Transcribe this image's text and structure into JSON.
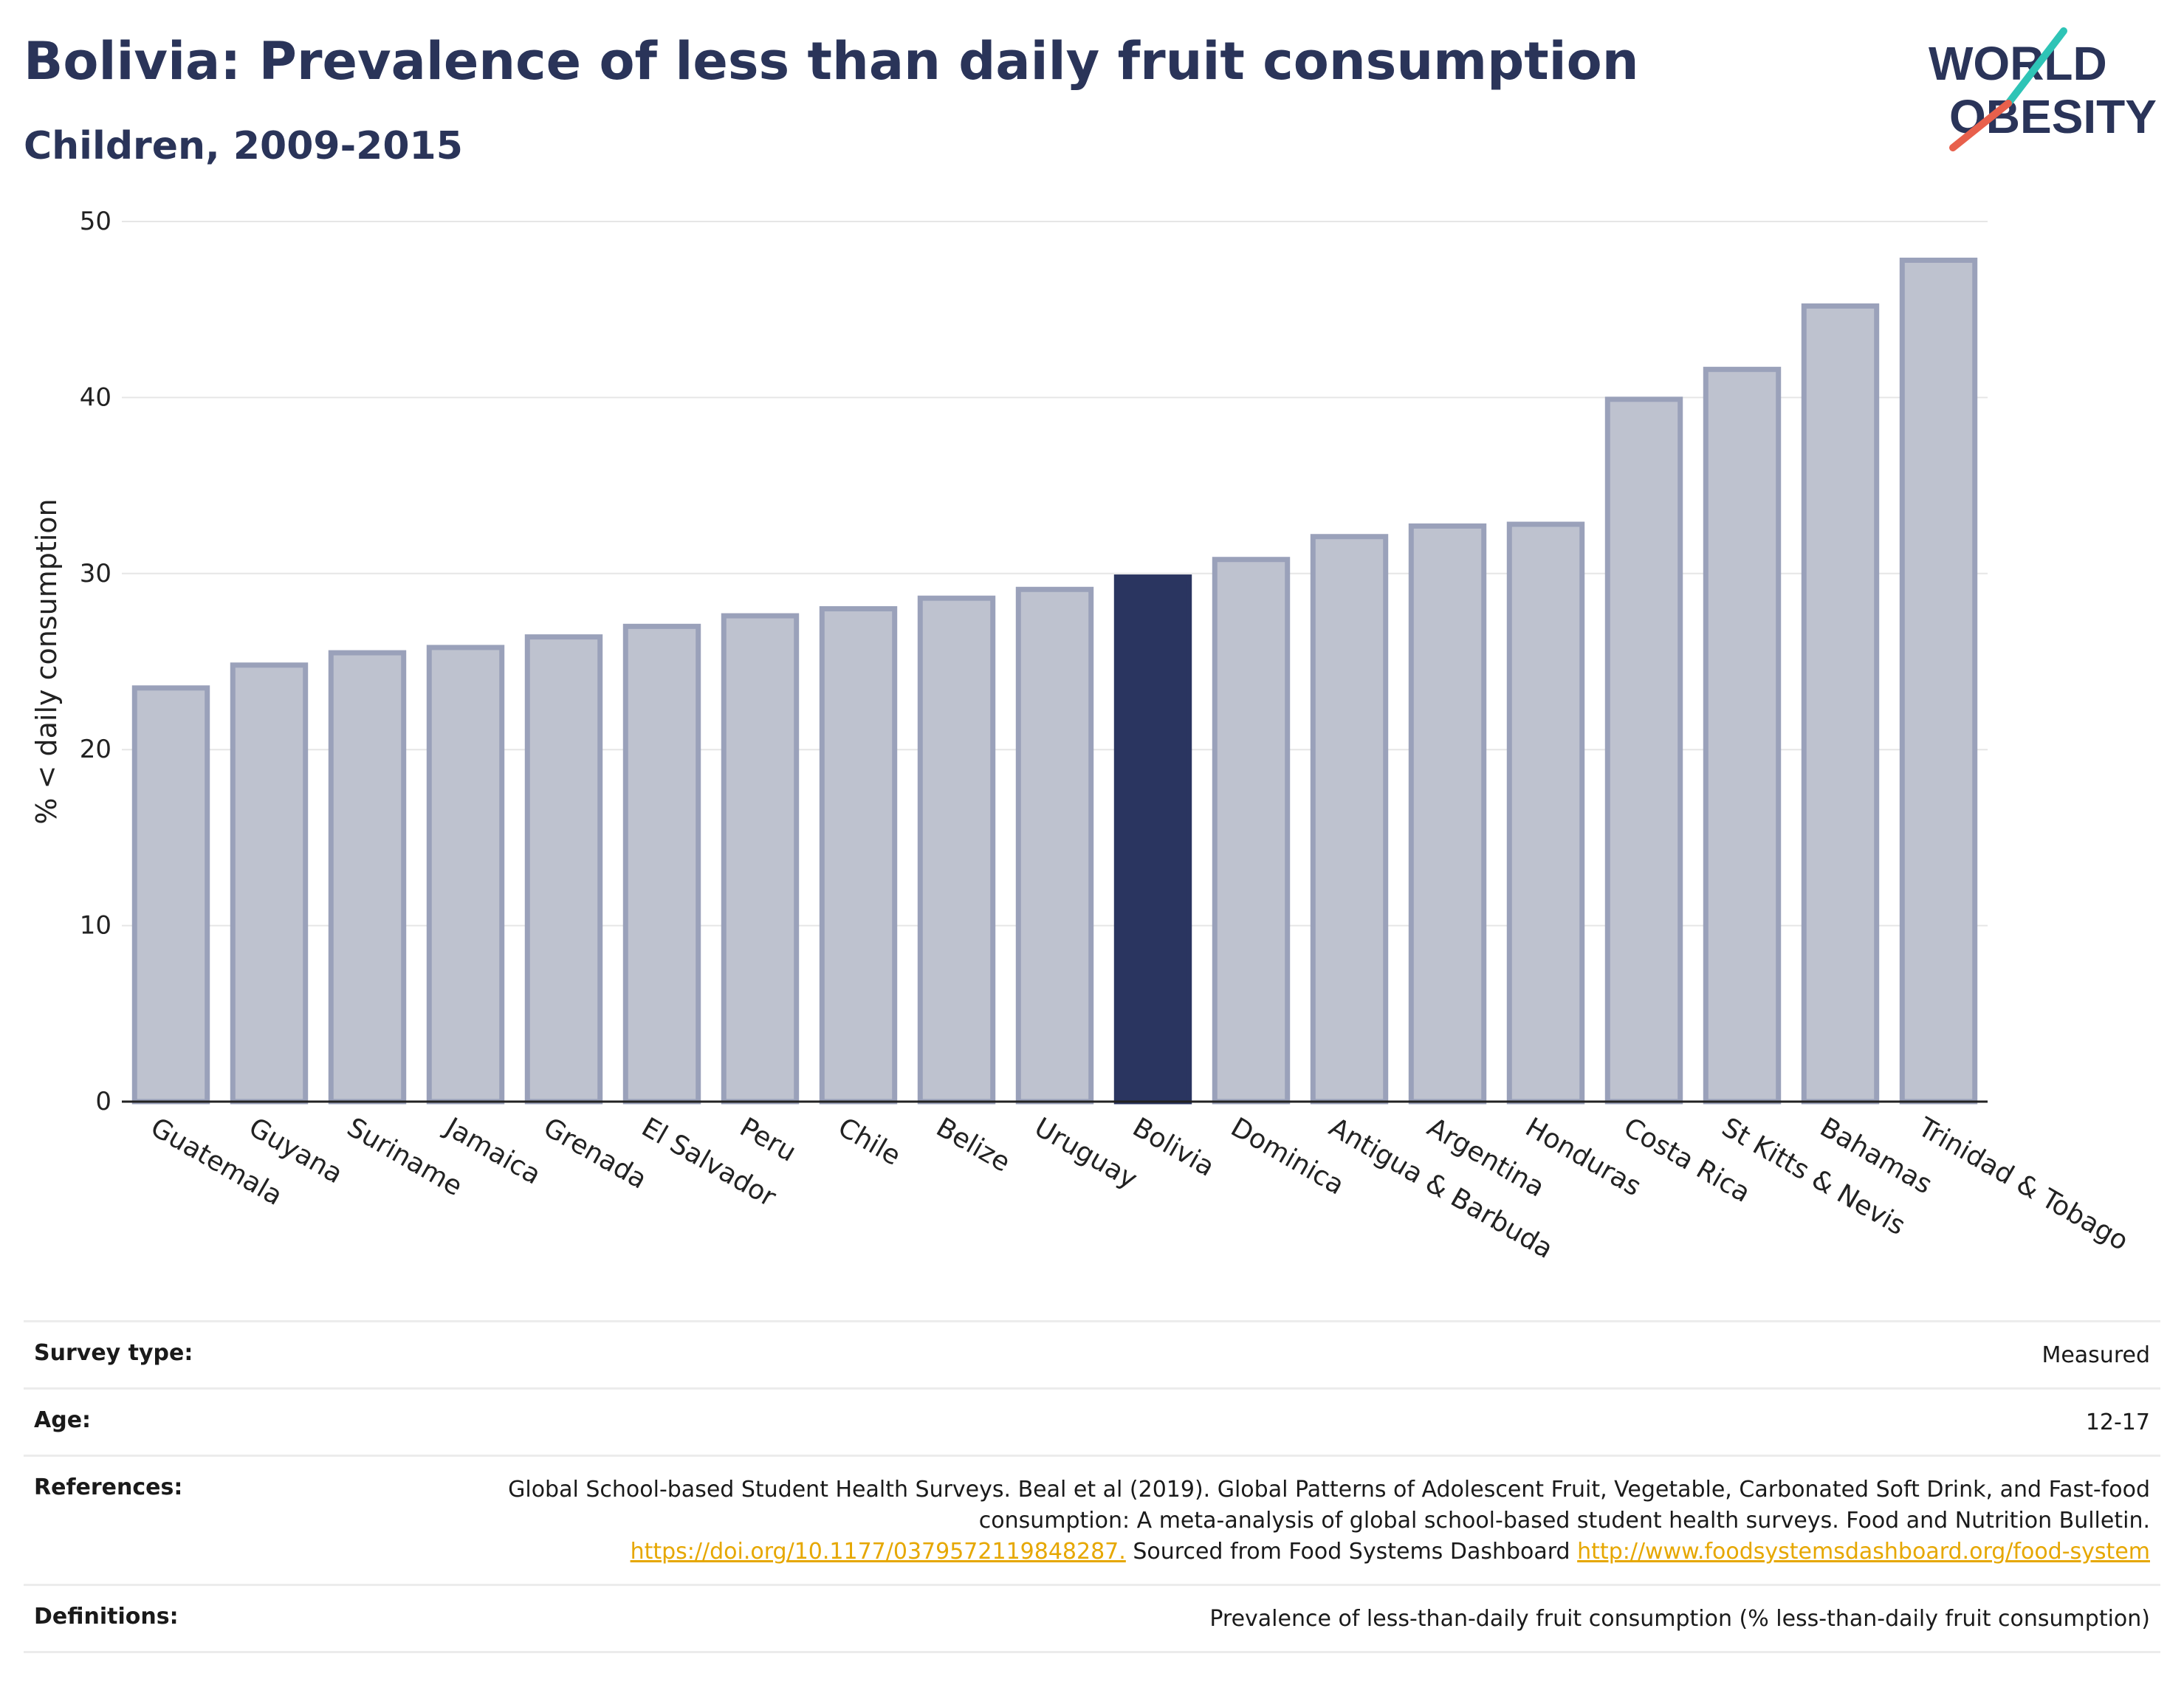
{
  "header": {
    "title": "Bolivia: Prevalence of less than daily fruit consumption",
    "subtitle": "Children, 2009-2015"
  },
  "logo": {
    "line1": "WORLD",
    "line2": "OBESITY",
    "accent_teal": "#2ec4b6",
    "accent_red": "#e8604c"
  },
  "colors": {
    "bar_default": "#bec2cf",
    "bar_border": "#9aa1ba",
    "bar_highlight": "#2a3560",
    "text": "#2a3459",
    "grid": "#e6e6e6"
  },
  "chart_data": {
    "type": "bar",
    "ylabel": "% < daily consumption",
    "ylim": [
      0,
      50
    ],
    "yticks": [
      0,
      10,
      20,
      30,
      40,
      50
    ],
    "highlight": "Bolivia",
    "categories": [
      "Guatemala",
      "Guyana",
      "Suriname",
      "Jamaica",
      "Grenada",
      "El Salvador",
      "Peru",
      "Chile",
      "Belize",
      "Uruguay",
      "Bolivia",
      "Dominica",
      "Antigua & Barbuda",
      "Argentina",
      "Honduras",
      "Costa Rica",
      "St Kitts & Nevis",
      "Bahamas",
      "Trinidad & Tobago"
    ],
    "values": [
      23.5,
      24.8,
      25.5,
      25.8,
      26.4,
      27.0,
      27.6,
      28.0,
      28.6,
      29.1,
      29.8,
      30.8,
      32.1,
      32.7,
      32.8,
      39.9,
      41.6,
      45.2,
      47.8
    ],
    "grid": true
  },
  "meta": {
    "survey_type": {
      "label": "Survey type:",
      "value": "Measured"
    },
    "age": {
      "label": "Age:",
      "value": "12-17"
    },
    "references": {
      "label": "References:",
      "text1": "Global School-based Student Health Surveys. Beal et al (2019). Global Patterns of Adolescent Fruit, Vegetable, Carbonated Soft Drink, and Fast-food consumption: A meta-analysis of global school-based student health surveys. Food and Nutrition Bulletin.",
      "link1": "https://doi.org/10.1177/0379572119848287.",
      "text2": "Sourced from Food Systems Dashboard",
      "link2": "http://www.foodsystemsdashboard.org/food-system"
    },
    "definitions": {
      "label": "Definitions:",
      "value": "Prevalence of less-than-daily fruit consumption (% less-than-daily fruit consumption)"
    }
  }
}
